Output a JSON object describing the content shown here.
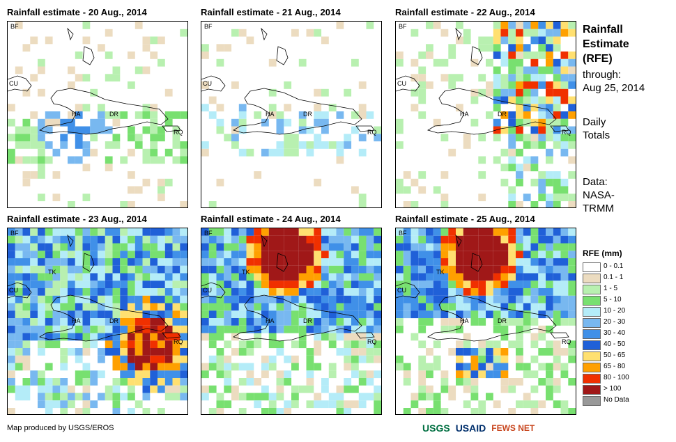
{
  "panels": [
    {
      "title": "Rainfall estimate - 20 Aug., 2014",
      "labels": {
        "BF": "BF",
        "CU": "CU",
        "HA": "HA",
        "DR": "DR",
        "RQ": "RQ"
      }
    },
    {
      "title": "Rainfall estimate - 21 Aug., 2014",
      "labels": {
        "BF": "BF",
        "CU": "CU",
        "HA": "HA",
        "DR": "DR",
        "RQ": "RQ"
      }
    },
    {
      "title": "Rainfall estimate - 22 Aug., 2014",
      "labels": {
        "BF": "BF",
        "CU": "CU",
        "HA": "HA",
        "DR": "DR",
        "RQ": "RQ"
      }
    },
    {
      "title": "Rainfall estimate - 23 Aug., 2014",
      "labels": {
        "BF": "BF",
        "CU": "CU",
        "TK": "TK",
        "HA": "HA",
        "DR": "DR",
        "RQ": "RQ"
      }
    },
    {
      "title": "Rainfall estimate - 24 Aug., 2014",
      "labels": {
        "BF": "BF",
        "CU": "CU",
        "TK": "TK",
        "HA": "HA",
        "DR": "DR",
        "RQ": "RQ"
      }
    },
    {
      "title": "Rainfall estimate - 25 Aug., 2014",
      "labels": {
        "BF": "BF",
        "CU": "CU",
        "TK": "TK",
        "HA": "HA",
        "DR": "DR",
        "RQ": "RQ"
      }
    }
  ],
  "side": {
    "title": "Rainfall Estimate (RFE)",
    "through": "through:",
    "date": "Aug 25, 2014",
    "daily": "Daily Totals",
    "data": "Data: NASA-TRMM"
  },
  "legend": {
    "title": "RFE (mm)",
    "items": [
      {
        "label": "0 - 0.1",
        "color": "#ffffff"
      },
      {
        "label": "0.1 - 1",
        "color": "#ecdcc0"
      },
      {
        "label": "1 - 5",
        "color": "#b8f0b0"
      },
      {
        "label": "5 - 10",
        "color": "#78e070"
      },
      {
        "label": "10 - 20",
        "color": "#b4ecf8"
      },
      {
        "label": "20 - 30",
        "color": "#78b8f0"
      },
      {
        "label": "30 - 40",
        "color": "#4090e8"
      },
      {
        "label": "40 - 50",
        "color": "#2060d8"
      },
      {
        "label": "50 - 65",
        "color": "#ffe070"
      },
      {
        "label": "65 - 80",
        "color": "#ffa000"
      },
      {
        "label": "80 - 100",
        "color": "#f03000"
      },
      {
        "label": "> 100",
        "color": "#a01818"
      },
      {
        "label": "No Data",
        "color": "#999999"
      }
    ]
  },
  "footer": "Map produced by USGS/EROS",
  "logos": [
    "USGS",
    "USAID",
    "FEWS NET"
  ]
}
